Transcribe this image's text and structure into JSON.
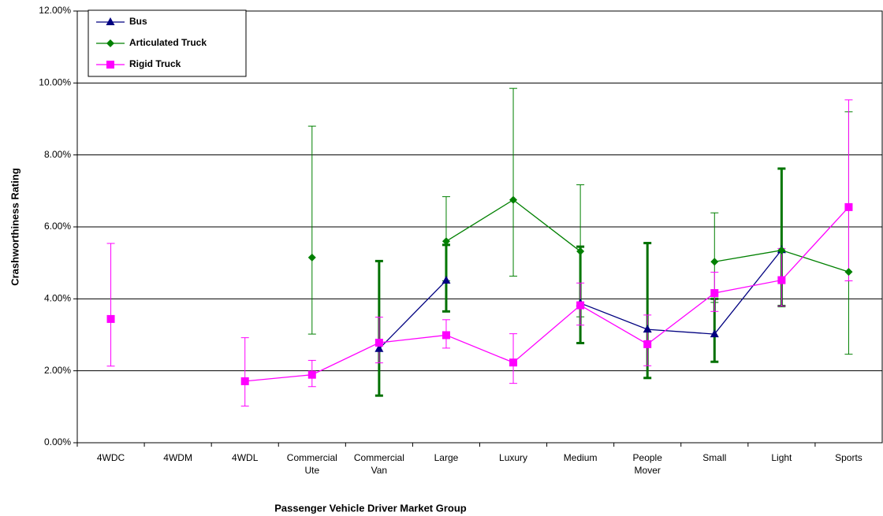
{
  "chart_data": {
    "type": "line",
    "x_label": "Passenger Vehicle Driver Market Group",
    "y_label": "Crashworthiness Rating",
    "categories": [
      "4WDC",
      "4WDM",
      "4WDL",
      "Commercial Ute",
      "Commercial Van",
      "Large",
      "Luxury",
      "Medium",
      "People Mover",
      "Small",
      "Light",
      "Sports"
    ],
    "ylim": [
      0,
      12
    ],
    "yticks": [
      {
        "value": 0,
        "label": "0.00%"
      },
      {
        "value": 2,
        "label": "2.00%"
      },
      {
        "value": 4,
        "label": "4.00%"
      },
      {
        "value": 6,
        "label": "6.00%"
      },
      {
        "value": 8,
        "label": "8.00%"
      },
      {
        "value": 10,
        "label": "10.00%"
      },
      {
        "value": 12,
        "label": "12.00%"
      }
    ],
    "grid": true,
    "legend": "top-left",
    "series": [
      {
        "name": "Bus",
        "color": "#000080",
        "marker": "triangle",
        "error_color": "#007000",
        "error_width": 3,
        "values": [
          null,
          null,
          null,
          null,
          2.61,
          4.51,
          null,
          3.88,
          3.15,
          3.02,
          5.36,
          null
        ],
        "lower": [
          null,
          null,
          null,
          null,
          1.31,
          3.65,
          null,
          2.77,
          1.8,
          2.25,
          3.8,
          null
        ],
        "upper": [
          null,
          null,
          null,
          null,
          5.05,
          5.5,
          null,
          5.45,
          5.55,
          4.0,
          7.62,
          null
        ]
      },
      {
        "name": "Articulated Truck",
        "color": "#008000",
        "marker": "diamond",
        "error_color": "#008000",
        "error_width": 1,
        "values": [
          null,
          null,
          null,
          5.15,
          null,
          5.6,
          6.75,
          5.32,
          null,
          5.03,
          5.35,
          4.75
        ],
        "lower": [
          null,
          null,
          null,
          3.02,
          null,
          4.5,
          4.63,
          3.5,
          null,
          3.9,
          3.8,
          2.46
        ],
        "upper": [
          null,
          null,
          null,
          8.8,
          null,
          6.84,
          9.85,
          7.17,
          null,
          6.39,
          7.6,
          9.2
        ]
      },
      {
        "name": "Rigid Truck",
        "color": "#ff00ff",
        "marker": "square",
        "error_color": "#ff00ff",
        "error_width": 1,
        "values": [
          3.44,
          null,
          1.71,
          1.89,
          2.78,
          2.99,
          2.23,
          3.82,
          2.74,
          4.16,
          4.52,
          6.55
        ],
        "lower": [
          2.13,
          null,
          1.02,
          1.56,
          2.22,
          2.63,
          1.65,
          3.27,
          2.14,
          3.65,
          3.8,
          4.5
        ],
        "upper": [
          5.54,
          null,
          2.92,
          2.29,
          3.49,
          3.42,
          3.03,
          4.44,
          3.55,
          4.74,
          5.4,
          9.53
        ]
      }
    ]
  }
}
